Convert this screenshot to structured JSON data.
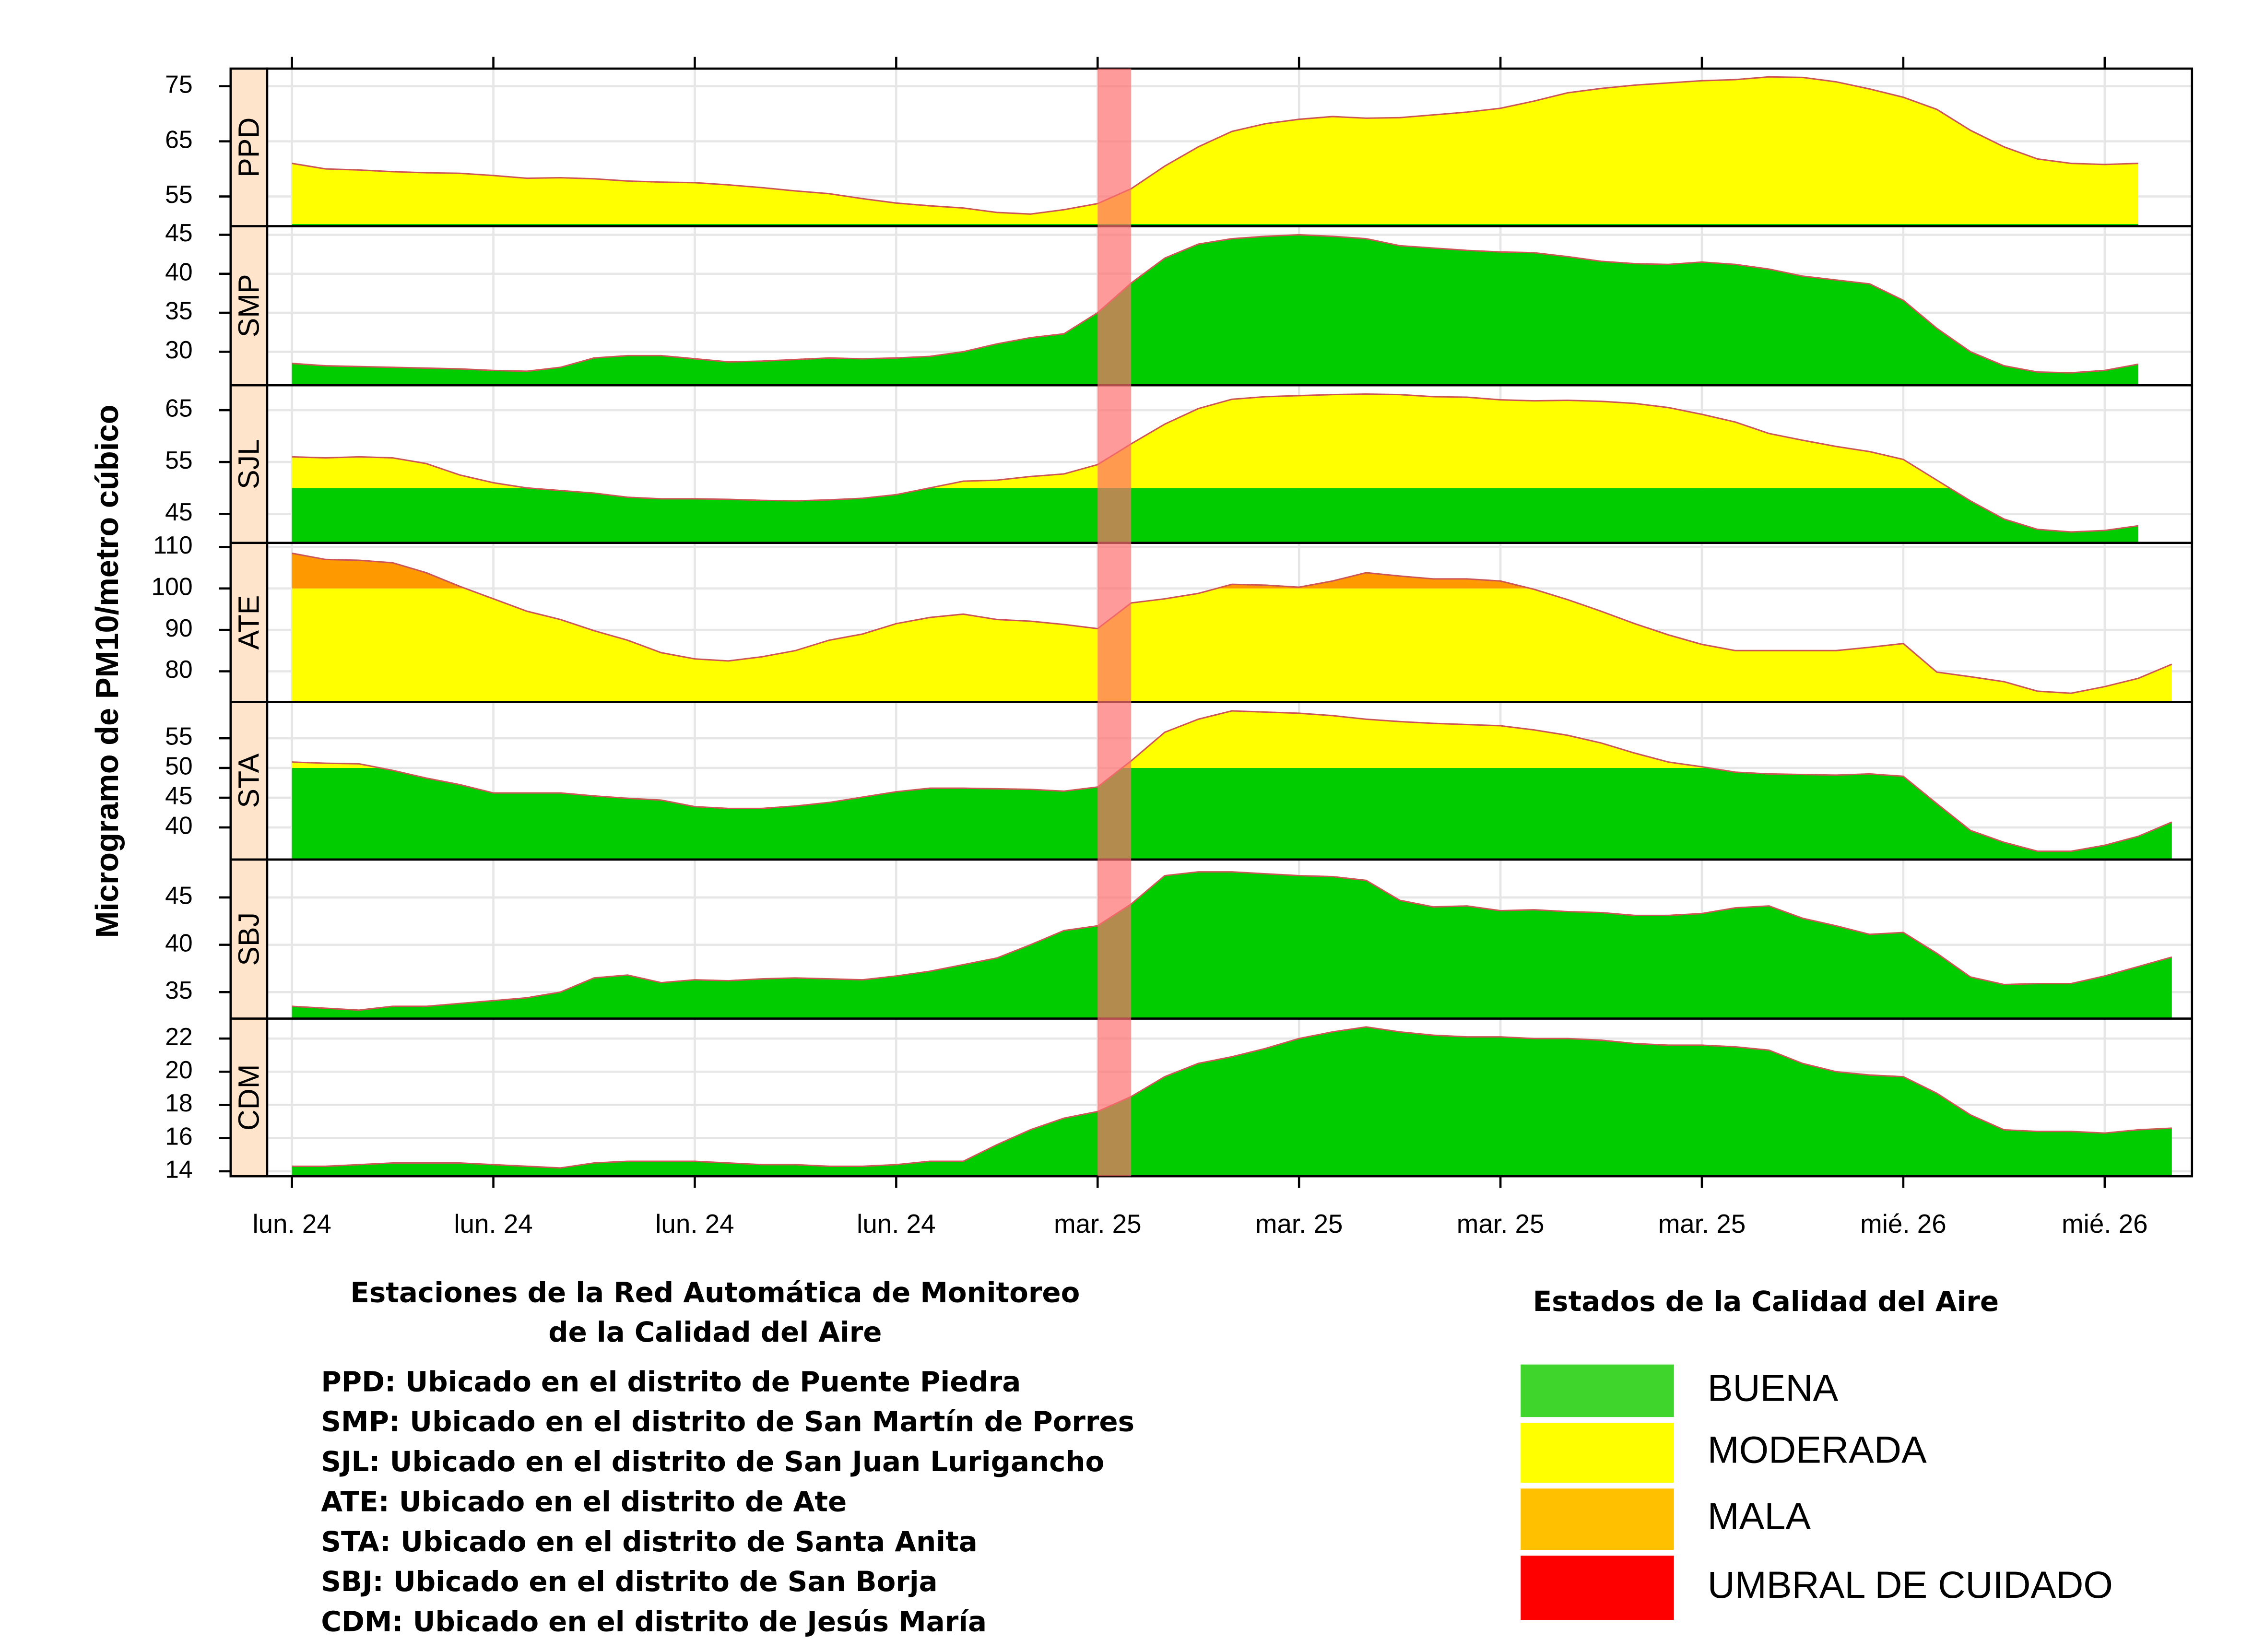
{
  "chart_data": {
    "type": "area",
    "y_label": "Microgramo de PM10/metro cúbico",
    "x": [
      0,
      1,
      2,
      3,
      4,
      5,
      6,
      7,
      8,
      9,
      10,
      11,
      12,
      13,
      14,
      15,
      16,
      17,
      18,
      19,
      20,
      21,
      22,
      23,
      24,
      25,
      26,
      27,
      28,
      29,
      30,
      31,
      32,
      33,
      34,
      35,
      36,
      37,
      38,
      39,
      40,
      41,
      42,
      43,
      44,
      45,
      46,
      47,
      48,
      49,
      50,
      51,
      52,
      53,
      54,
      55,
      56
    ],
    "xlim": [
      -0.74,
      56.6
    ],
    "xticks": [
      {
        "value": 0,
        "label": "lun. 24"
      },
      {
        "value": 6,
        "label": "lun. 24"
      },
      {
        "value": 12,
        "label": "lun. 24"
      },
      {
        "value": 18,
        "label": "lun. 24"
      },
      {
        "value": 24,
        "label": "mar. 25"
      },
      {
        "value": 30,
        "label": "mar. 25"
      },
      {
        "value": 36,
        "label": "mar. 25"
      },
      {
        "value": 42,
        "label": "mar. 25"
      },
      {
        "value": 48,
        "label": "mié. 26"
      },
      {
        "value": 54,
        "label": "mié. 26"
      }
    ],
    "grid": true,
    "thresholds": [
      50,
      100
    ],
    "fill_colors": [
      "#00cc00",
      "#ffff00",
      "#ff9900"
    ],
    "line_color": "#cc5555",
    "highlight": {
      "from": 24,
      "to": 25,
      "color": "#ff6f6f"
    },
    "panels": [
      {
        "name": "PPD",
        "ylim": [
          49.6,
          78.2
        ],
        "yticks": [
          55,
          65,
          75
        ],
        "values": [
          61,
          60,
          59.8,
          59.5,
          59.3,
          59.2,
          58.8,
          58.3,
          58.4,
          58.2,
          57.8,
          57.6,
          57.5,
          57.1,
          56.6,
          56,
          55.5,
          54.6,
          53.8,
          53.3,
          52.9,
          52.1,
          51.8,
          52.6,
          53.7,
          56.4,
          60.5,
          64,
          66.8,
          68.2,
          69,
          69.5,
          69.2,
          69.3,
          69.8,
          70.3,
          71,
          72.3,
          73.8,
          74.6,
          75.2,
          75.6,
          76,
          76.2,
          76.7,
          76.6,
          75.8,
          74.5,
          73,
          70.8,
          67,
          64,
          61.8,
          61,
          60.8,
          61,
          null
        ]
      },
      {
        "name": "SMP",
        "ylim": [
          25.7,
          46.1
        ],
        "yticks": [
          30,
          35,
          40,
          45
        ],
        "values": [
          28.5,
          28.2,
          28.1,
          28,
          27.9,
          27.8,
          27.6,
          27.5,
          28,
          29.2,
          29.5,
          29.5,
          29.1,
          28.7,
          28.8,
          29,
          29.2,
          29.1,
          29.2,
          29.4,
          30,
          31,
          31.8,
          32.3,
          35,
          38.8,
          42,
          43.8,
          44.5,
          44.8,
          45,
          44.8,
          44.5,
          43.6,
          43.3,
          43,
          42.8,
          42.7,
          42.2,
          41.6,
          41.3,
          41.2,
          41.5,
          41.2,
          40.6,
          39.7,
          39.2,
          38.7,
          36.6,
          33,
          30,
          28.2,
          27.4,
          27.3,
          27.6,
          28.4,
          null
        ]
      },
      {
        "name": "SJL",
        "ylim": [
          39.4,
          69.8
        ],
        "yticks": [
          45,
          55,
          65
        ],
        "values": [
          56,
          55.8,
          56,
          55.8,
          54.7,
          52.5,
          51,
          50,
          49.5,
          49,
          48.2,
          47.9,
          47.9,
          47.8,
          47.6,
          47.5,
          47.7,
          48,
          48.7,
          50,
          51.3,
          51.5,
          52.2,
          52.7,
          54.5,
          58.5,
          62.3,
          65.3,
          67.1,
          67.6,
          67.8,
          68,
          68.1,
          68,
          67.6,
          67.5,
          67,
          66.8,
          66.9,
          66.7,
          66.3,
          65.5,
          64.2,
          62.7,
          60.5,
          59.2,
          58,
          57,
          55.5,
          51.5,
          47.5,
          44,
          42,
          41.5,
          41.8,
          42.7,
          null
        ]
      },
      {
        "name": "ATE",
        "ylim": [
          72.6,
          111
        ],
        "yticks": [
          80,
          90,
          100,
          110
        ],
        "values": [
          108.5,
          107,
          106.8,
          106.2,
          103.8,
          100.5,
          97.5,
          94.5,
          92.5,
          89.8,
          87.5,
          84.5,
          83,
          82.5,
          83.5,
          85,
          87.5,
          89,
          91.5,
          93,
          93.8,
          92.5,
          92.1,
          91.3,
          90.3,
          96.5,
          97.5,
          98.8,
          101,
          100.8,
          100.3,
          101.8,
          103.8,
          103,
          102.3,
          102.3,
          101.8,
          99.8,
          97.3,
          94.5,
          91.5,
          88.8,
          86.5,
          85,
          85,
          85,
          85,
          85.8,
          86.7,
          79.8,
          78.7,
          77.5,
          75.2,
          74.7,
          76.3,
          78.3,
          81.7
        ]
      },
      {
        "name": "STA",
        "ylim": [
          34.6,
          61.1
        ],
        "yticks": [
          40,
          45,
          50,
          55
        ],
        "values": [
          51,
          50.8,
          50.7,
          49.6,
          48.3,
          47.2,
          45.8,
          45.8,
          45.8,
          45.3,
          44.9,
          44.6,
          43.5,
          43.2,
          43.2,
          43.6,
          44.2,
          45.1,
          46,
          46.6,
          46.6,
          46.5,
          46.4,
          46.1,
          46.8,
          51.2,
          56,
          58.2,
          59.6,
          59.4,
          59.2,
          58.8,
          58.2,
          57.8,
          57.5,
          57.3,
          57.1,
          56.4,
          55.5,
          54.2,
          52.5,
          51,
          50.2,
          49.3,
          49,
          48.9,
          48.8,
          49,
          48.6,
          44,
          39.5,
          37.5,
          36,
          36,
          37,
          38.5,
          40.9
        ]
      },
      {
        "name": "SBJ",
        "ylim": [
          32.2,
          49
        ],
        "yticks": [
          35,
          40,
          45
        ],
        "values": [
          33.5,
          33.3,
          33.1,
          33.5,
          33.5,
          33.8,
          34.1,
          34.4,
          35,
          36.5,
          36.8,
          36,
          36.3,
          36.2,
          36.4,
          36.5,
          36.4,
          36.3,
          36.7,
          37.2,
          37.9,
          38.6,
          40,
          41.5,
          42,
          44.3,
          47.3,
          47.7,
          47.7,
          47.5,
          47.3,
          47.2,
          46.8,
          44.7,
          44,
          44.1,
          43.6,
          43.7,
          43.5,
          43.4,
          43.1,
          43.1,
          43.3,
          43.9,
          44.1,
          42.8,
          42,
          41.1,
          41.3,
          39.1,
          36.6,
          35.8,
          35.9,
          35.9,
          36.7,
          37.7,
          38.7
        ]
      },
      {
        "name": "CDM",
        "ylim": [
          13.7,
          23.2
        ],
        "yticks": [
          14,
          16,
          18,
          20,
          22
        ],
        "values": [
          14.3,
          14.3,
          14.4,
          14.5,
          14.5,
          14.5,
          14.4,
          14.3,
          14.2,
          14.5,
          14.6,
          14.6,
          14.6,
          14.5,
          14.4,
          14.4,
          14.3,
          14.3,
          14.4,
          14.6,
          14.6,
          15.6,
          16.5,
          17.2,
          17.6,
          18.5,
          19.7,
          20.5,
          20.9,
          21.4,
          22,
          22.4,
          22.7,
          22.4,
          22.2,
          22.1,
          22.1,
          22,
          22,
          21.9,
          21.7,
          21.6,
          21.6,
          21.5,
          21.3,
          20.5,
          20,
          19.8,
          19.7,
          18.7,
          17.4,
          16.5,
          16.4,
          16.4,
          16.3,
          16.5,
          16.6
        ]
      }
    ],
    "stations": {
      "title": [
        "Estaciones de la Red Automática de Monitoreo",
        "de la Calidad del Aire"
      ],
      "lines": [
        "PPD: Ubicado en el distrito de Puente Piedra",
        "SMP: Ubicado en el distrito de San Martín de Porres",
        "SJL: Ubicado en el distrito de San Juan Lurigancho",
        "ATE: Ubicado en el distrito de Ate",
        "STA: Ubicado en el distrito de Santa Anita",
        "SBJ: Ubicado en el distrito de San Borja",
        "CDM: Ubicado en el distrito de Jesús María"
      ]
    },
    "legend": {
      "title": "Estados de la Calidad del Aire",
      "entries": [
        {
          "name": "BUENA",
          "color": "#3fd52c"
        },
        {
          "name": "MODERADA",
          "color": "#ffff00"
        },
        {
          "name": "MALA",
          "color": "#ffc000"
        },
        {
          "name": "UMBRAL DE CUIDADO",
          "color": "#ff0000"
        }
      ]
    }
  }
}
